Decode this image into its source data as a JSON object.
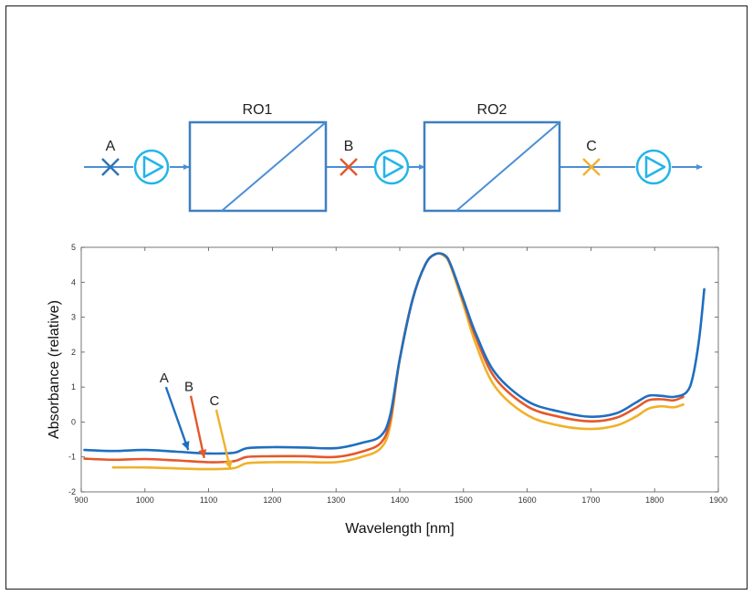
{
  "diagram": {
    "boxes": [
      {
        "id": "ro1",
        "label": "RO1"
      },
      {
        "id": "ro2",
        "label": "RO2"
      }
    ],
    "points": [
      {
        "id": "A",
        "label": "A",
        "color": "#2e75b6"
      },
      {
        "id": "B",
        "label": "B",
        "color": "#e4582a"
      },
      {
        "id": "C",
        "label": "C",
        "color": "#f2b233"
      }
    ],
    "line_color": "#4a8fd6",
    "pump_color": "#22b5e8"
  },
  "chart_data": {
    "type": "line",
    "xlabel": "Wavelength [nm]",
    "ylabel": "Absorbance (relative)",
    "xlim": [
      900,
      1900
    ],
    "ylim": [
      -2,
      5
    ],
    "xticks": [
      900,
      1000,
      1100,
      1200,
      1300,
      1400,
      1500,
      1600,
      1700,
      1800,
      1900
    ],
    "yticks": [
      -2,
      -1,
      0,
      1,
      2,
      3,
      4,
      5
    ],
    "grid": false,
    "series": [
      {
        "name": "A",
        "color": "#1f6fbf",
        "x": [
          905,
          950,
          1000,
          1050,
          1100,
          1140,
          1160,
          1200,
          1250,
          1300,
          1340,
          1370,
          1385,
          1400,
          1420,
          1440,
          1455,
          1470,
          1480,
          1500,
          1520,
          1550,
          1600,
          1650,
          1700,
          1740,
          1770,
          1790,
          1810,
          1830,
          1850,
          1860,
          1870,
          1878
        ],
        "y": [
          -0.8,
          -0.83,
          -0.8,
          -0.85,
          -0.9,
          -0.88,
          -0.75,
          -0.72,
          -0.73,
          -0.75,
          -0.6,
          -0.4,
          0.2,
          1.8,
          3.5,
          4.5,
          4.8,
          4.78,
          4.5,
          3.5,
          2.5,
          1.4,
          0.6,
          0.3,
          0.15,
          0.25,
          0.55,
          0.75,
          0.75,
          0.72,
          0.85,
          1.3,
          2.4,
          3.8
        ]
      },
      {
        "name": "B",
        "color": "#e4582a",
        "x": [
          905,
          950,
          1000,
          1050,
          1100,
          1140,
          1160,
          1200,
          1250,
          1300,
          1340,
          1370,
          1385,
          1400,
          1420,
          1440,
          1455,
          1470,
          1480,
          1500,
          1520,
          1550,
          1600,
          1650,
          1700,
          1740,
          1770,
          1790,
          1810,
          1830,
          1845
        ],
        "y": [
          -1.05,
          -1.08,
          -1.06,
          -1.1,
          -1.15,
          -1.12,
          -1.0,
          -0.98,
          -0.98,
          -1.0,
          -0.85,
          -0.6,
          0.05,
          1.8,
          3.5,
          4.5,
          4.8,
          4.78,
          4.5,
          3.45,
          2.4,
          1.25,
          0.45,
          0.15,
          0.02,
          0.12,
          0.4,
          0.62,
          0.65,
          0.62,
          0.72
        ]
      },
      {
        "name": "C",
        "color": "#f0b12a",
        "x": [
          950,
          1000,
          1050,
          1100,
          1140,
          1160,
          1200,
          1250,
          1300,
          1340,
          1370,
          1385,
          1400,
          1420,
          1440,
          1455,
          1470,
          1480,
          1500,
          1520,
          1550,
          1600,
          1650,
          1700,
          1740,
          1770,
          1790,
          1810,
          1830,
          1845
        ],
        "y": [
          -1.3,
          -1.3,
          -1.33,
          -1.35,
          -1.32,
          -1.18,
          -1.15,
          -1.15,
          -1.15,
          -1.0,
          -0.75,
          -0.1,
          1.8,
          3.5,
          4.5,
          4.8,
          4.75,
          4.45,
          3.35,
          2.2,
          1.0,
          0.2,
          -0.1,
          -0.2,
          -0.1,
          0.15,
          0.38,
          0.45,
          0.42,
          0.5
        ]
      }
    ],
    "annotations": [
      {
        "text": "A",
        "color": "#1f6fbf",
        "tail": [
          1033,
          1.0
        ],
        "head": [
          1068,
          -0.8
        ]
      },
      {
        "text": "B",
        "color": "#e4582a",
        "tail": [
          1072,
          0.75
        ],
        "head": [
          1093,
          -1.03
        ]
      },
      {
        "text": "C",
        "color": "#f0b12a",
        "tail": [
          1112,
          0.35
        ],
        "head": [
          1134,
          -1.35
        ]
      }
    ]
  }
}
